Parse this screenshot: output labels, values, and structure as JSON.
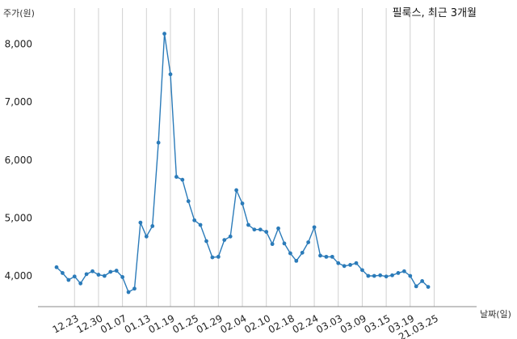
{
  "chart_data": {
    "type": "line",
    "title": "필룩스, 최근 3개월",
    "ylabel": "주가(원)",
    "xlabel": "날짜(일)",
    "ylim": [
      3500,
      8400
    ],
    "yticks": [
      4000,
      5000,
      6000,
      7000,
      8000
    ],
    "ytick_labels": [
      "4,000",
      "5,000",
      "6,000",
      "7,000",
      "8,000"
    ],
    "xtick_labels": [
      "12.23",
      "12.30",
      "01.07",
      "01.13",
      "01.19",
      "01.25",
      "01.29",
      "02.04",
      "02.10",
      "02.18",
      "02.24",
      "03.03",
      "03.09",
      "03.15",
      "03.19",
      "21.03.25"
    ],
    "xtick_positions": [
      3,
      7,
      11,
      15,
      19,
      23,
      27,
      31,
      35,
      39,
      43,
      47,
      51,
      55,
      59,
      63
    ],
    "grid": "vertical",
    "series": [
      {
        "color": "#2b7bb9",
        "values": [
          4150,
          4050,
          3930,
          3990,
          3870,
          4030,
          4080,
          4020,
          4000,
          4070,
          4090,
          3980,
          3720,
          3780,
          4920,
          4680,
          4860,
          6300,
          8180,
          7480,
          5710,
          5660,
          5290,
          4960,
          4880,
          4600,
          4320,
          4330,
          4620,
          4680,
          5480,
          5250,
          4880,
          4800,
          4800,
          4760,
          4550,
          4820,
          4560,
          4390,
          4260,
          4400,
          4580,
          4840,
          4350,
          4330,
          4330,
          4220,
          4170,
          4190,
          4220,
          4100,
          4000,
          4000,
          4010,
          3990,
          4010,
          4050,
          4080,
          4000,
          3820,
          3910,
          3810
        ]
      }
    ]
  }
}
